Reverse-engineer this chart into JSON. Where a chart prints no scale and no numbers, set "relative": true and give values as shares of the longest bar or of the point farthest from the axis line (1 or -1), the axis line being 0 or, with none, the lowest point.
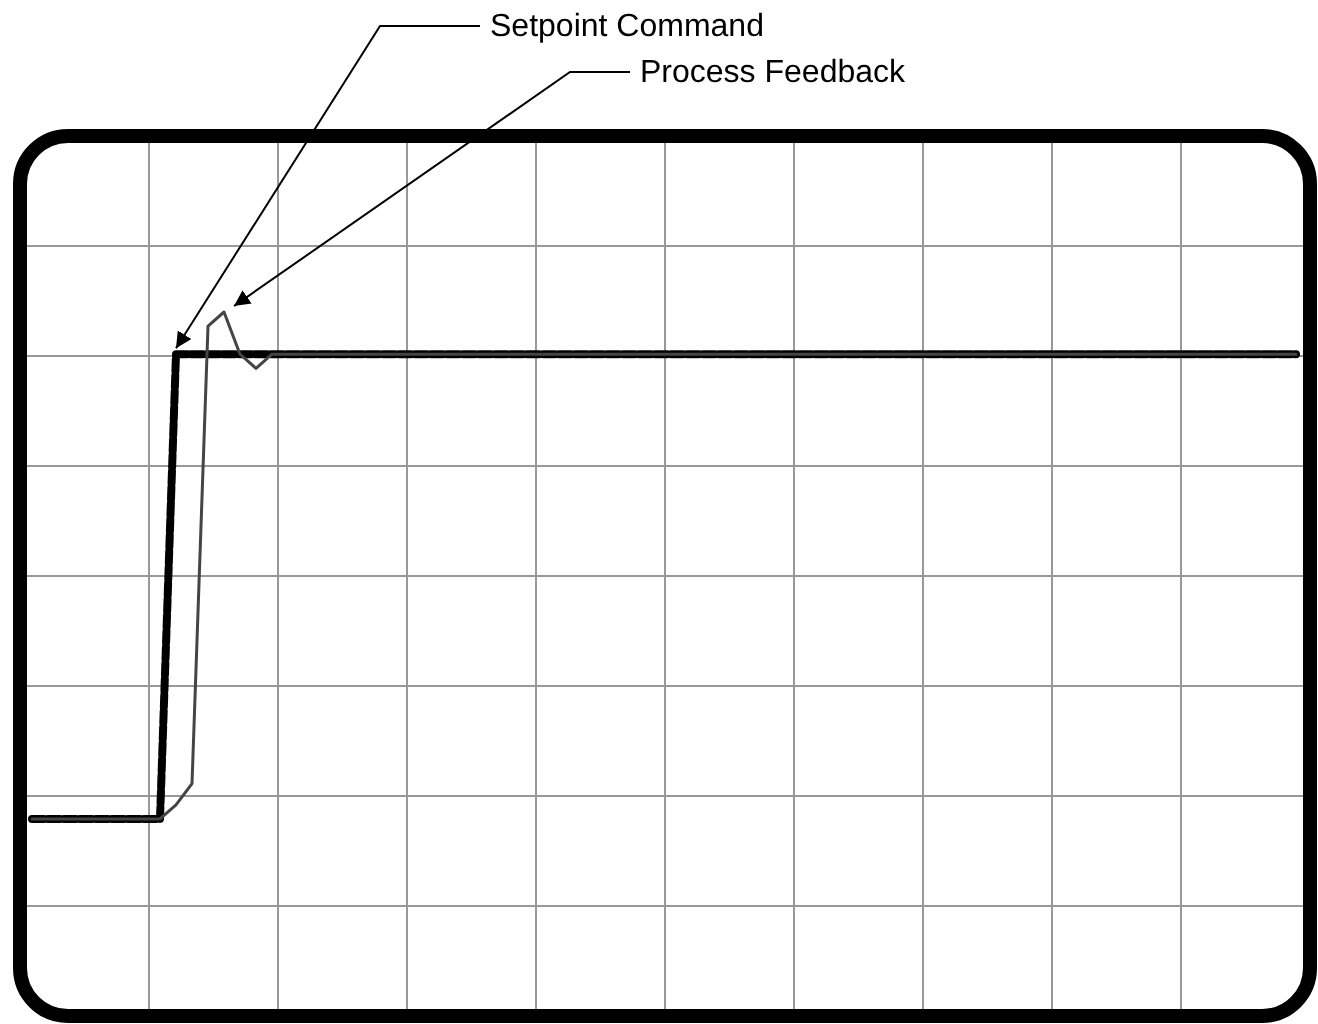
{
  "chart_data": {
    "type": "line",
    "relative": true,
    "grid": true,
    "categories": [
      null,
      null,
      null,
      null,
      null,
      null,
      null,
      null,
      null,
      null,
      null,
      null,
      null,
      null,
      null,
      null,
      null,
      null,
      null,
      null,
      null,
      null,
      null,
      null,
      null,
      null,
      null,
      null,
      null,
      null,
      null,
      null,
      null,
      null,
      null,
      null,
      null,
      null,
      null,
      null,
      null,
      null,
      null,
      null,
      null,
      null,
      null,
      null,
      null,
      null,
      null,
      null,
      null,
      null,
      null,
      null,
      null,
      null,
      null,
      null,
      null,
      null,
      null,
      null,
      null,
      null,
      null,
      null,
      null,
      null,
      null,
      null,
      null,
      null,
      null,
      null,
      null,
      null,
      null,
      null
    ],
    "series": [
      {
        "name": "Setpoint Command",
        "color": "#000000",
        "line_style": "dashed",
        "values": [
          0.28,
          0.28,
          0.28,
          0.28,
          0.28,
          0.28,
          0.28,
          0.28,
          0.28,
          0.94,
          0.94,
          0.94,
          0.94,
          0.94,
          0.94,
          0.94,
          0.94,
          0.94,
          0.94,
          0.94,
          0.94,
          0.94,
          0.94,
          0.94,
          0.94,
          0.94,
          0.94,
          0.94,
          0.94,
          0.94,
          0.94,
          0.94,
          0.94,
          0.94,
          0.94,
          0.94,
          0.94,
          0.94,
          0.94,
          0.94,
          0.94,
          0.94,
          0.94,
          0.94,
          0.94,
          0.94,
          0.94,
          0.94,
          0.94,
          0.94,
          0.94,
          0.94,
          0.94,
          0.94,
          0.94,
          0.94,
          0.94,
          0.94,
          0.94,
          0.94,
          0.94,
          0.94,
          0.94,
          0.94,
          0.94,
          0.94,
          0.94,
          0.94,
          0.94,
          0.94,
          0.94,
          0.94,
          0.94,
          0.94,
          0.94,
          0.94,
          0.94,
          0.94,
          0.94,
          0.94
        ]
      },
      {
        "name": "Process Feedback",
        "color": "#444444",
        "line_style": "solid",
        "values": [
          0.28,
          0.28,
          0.28,
          0.28,
          0.28,
          0.28,
          0.28,
          0.28,
          0.28,
          0.3,
          0.33,
          0.98,
          1,
          0.94,
          0.92,
          0.94,
          0.94,
          0.94,
          0.94,
          0.94,
          0.94,
          0.94,
          0.94,
          0.94,
          0.94,
          0.94,
          0.94,
          0.94,
          0.94,
          0.94,
          0.94,
          0.94,
          0.94,
          0.94,
          0.94,
          0.94,
          0.94,
          0.94,
          0.94,
          0.94,
          0.94,
          0.94,
          0.94,
          0.94,
          0.94,
          0.94,
          0.94,
          0.94,
          0.94,
          0.94,
          0.94,
          0.94,
          0.94,
          0.94,
          0.94,
          0.94,
          0.94,
          0.94,
          0.94,
          0.94,
          0.94,
          0.94,
          0.94,
          0.94,
          0.94,
          0.94,
          0.94,
          0.94,
          0.94,
          0.94,
          0.94,
          0.94,
          0.94,
          0.94,
          0.94,
          0.94,
          0.94,
          0.94,
          0.94,
          0.94
        ]
      }
    ]
  }
}
